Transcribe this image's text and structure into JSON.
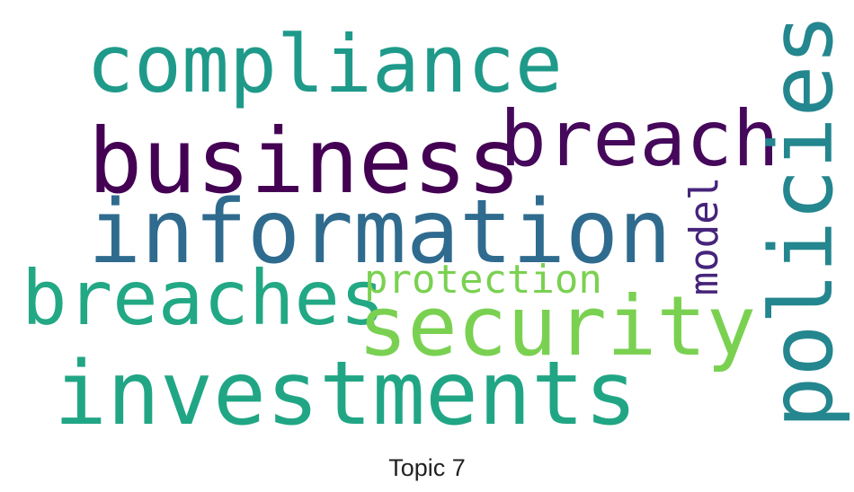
{
  "wordcloud": {
    "words": [
      {
        "text": "compliance",
        "color": "#1f9a8a"
      },
      {
        "text": "business",
        "color": "#440154"
      },
      {
        "text": "breach",
        "color": "#45085b"
      },
      {
        "text": "information",
        "color": "#2f6b8e"
      },
      {
        "text": "breaches",
        "color": "#22a884"
      },
      {
        "text": "protection",
        "color": "#7ad151"
      },
      {
        "text": "security",
        "color": "#7ad151"
      },
      {
        "text": "investments",
        "color": "#21a685"
      },
      {
        "text": "policies",
        "color": "#24868e"
      },
      {
        "text": "model",
        "color": "#46247a"
      }
    ]
  },
  "caption": "Topic 7"
}
